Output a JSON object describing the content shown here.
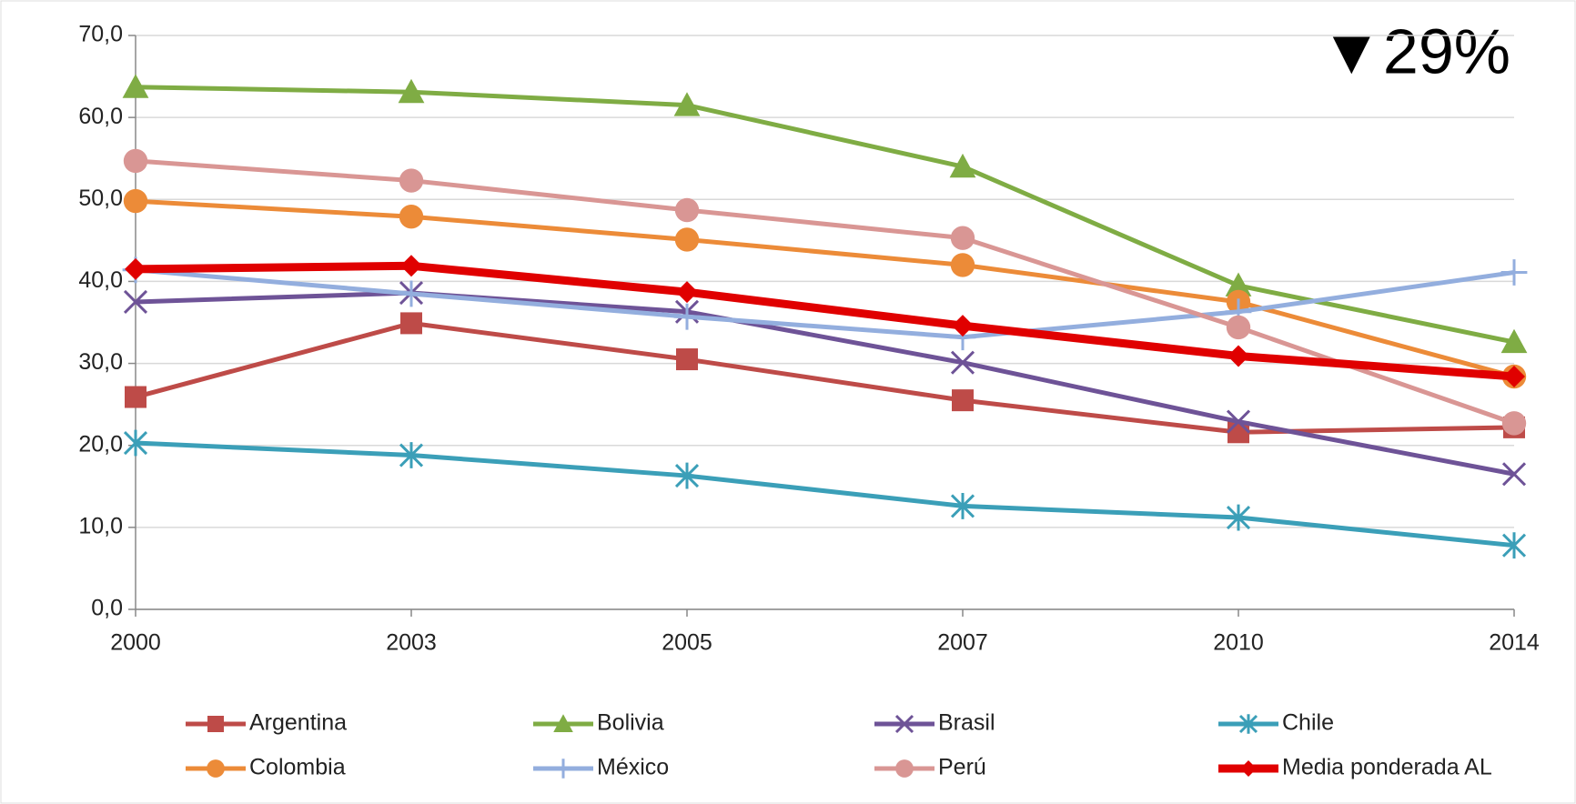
{
  "chart_data": {
    "type": "line",
    "annotation": "▼29%",
    "categories": [
      "2000",
      "2003",
      "2005",
      "2007",
      "2010",
      "2014"
    ],
    "ylim": [
      0,
      70
    ],
    "yticks": [
      {
        "value": 0,
        "label": "0,0"
      },
      {
        "value": 10,
        "label": "10,0"
      },
      {
        "value": 20,
        "label": "20,0"
      },
      {
        "value": 30,
        "label": "30,0"
      },
      {
        "value": 40,
        "label": "40,0"
      },
      {
        "value": 50,
        "label": "50,0"
      },
      {
        "value": 60,
        "label": "60,0"
      },
      {
        "value": 70,
        "label": "70,0"
      }
    ],
    "grid": true,
    "legend": "bottom",
    "series": [
      {
        "name": "Argentina",
        "color": "#be4b48",
        "marker": "square",
        "linewidth": 5,
        "values": [
          25.9,
          34.9,
          30.5,
          25.5,
          21.6,
          22.2
        ]
      },
      {
        "name": "Bolivia",
        "color": "#7fac44",
        "marker": "triangle",
        "linewidth": 5,
        "values": [
          63.7,
          63.1,
          61.5,
          54.0,
          39.5,
          32.6
        ]
      },
      {
        "name": "Brasil",
        "color": "#6e5397",
        "marker": "x",
        "linewidth": 5,
        "values": [
          37.5,
          38.6,
          36.3,
          30.1,
          22.9,
          16.5
        ]
      },
      {
        "name": "Chile",
        "color": "#3b9fb8",
        "marker": "asterisk",
        "linewidth": 5,
        "values": [
          20.3,
          18.8,
          16.3,
          12.6,
          11.2,
          7.8
        ]
      },
      {
        "name": "Colombia",
        "color": "#ec8b38",
        "marker": "circle",
        "linewidth": 5,
        "values": [
          49.8,
          47.9,
          45.1,
          42.0,
          37.5,
          28.4
        ]
      },
      {
        "name": "México",
        "color": "#93aede",
        "marker": "plus",
        "linewidth": 5,
        "values": [
          41.4,
          38.5,
          35.7,
          33.2,
          36.3,
          41.1
        ]
      },
      {
        "name": "Perú",
        "color": "#d99694",
        "marker": "circle",
        "linewidth": 5,
        "values": [
          54.7,
          52.3,
          48.7,
          45.3,
          34.4,
          22.7
        ]
      },
      {
        "name": "Media ponderada AL",
        "color": "#e00000",
        "marker": "diamond",
        "linewidth": 9,
        "values": [
          41.5,
          41.9,
          38.7,
          34.6,
          30.9,
          28.4
        ]
      }
    ]
  }
}
